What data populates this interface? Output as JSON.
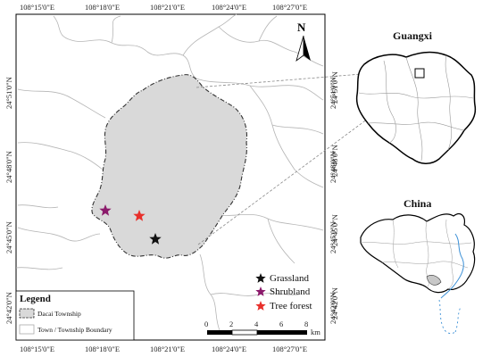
{
  "map": {
    "north_label": "N",
    "longitude_ticks": [
      "108°15'0\"E",
      "108°18'0\"E",
      "108°21'0\"E",
      "108°24'0\"E",
      "108°27'0\"E"
    ],
    "latitude_ticks": [
      "24°51'0\"N",
      "24°48'0\"N",
      "24°45'0\"N",
      "24°42'0\"N"
    ],
    "legend": {
      "title": "Legend",
      "items": [
        "Dacai Township",
        "Town / Township Boundary"
      ]
    },
    "sites": [
      {
        "label": "Grassland",
        "color": "#111111"
      },
      {
        "label": "Shrubland",
        "color": "#8b1a6b"
      },
      {
        "label": "Tree forest",
        "color": "#e8302b"
      }
    ],
    "scale": {
      "ticks": [
        "0",
        "2",
        "4",
        "6",
        "8"
      ],
      "unit": "km"
    }
  },
  "insets": {
    "guangxi": {
      "title": "Guangxi",
      "lat_ticks": [
        "24°51'0\"N",
        "24°48'0\"N"
      ]
    },
    "china": {
      "title": "China",
      "lat_ticks": [
        "24°45'0\"N",
        "24°42'0\"N"
      ]
    }
  }
}
